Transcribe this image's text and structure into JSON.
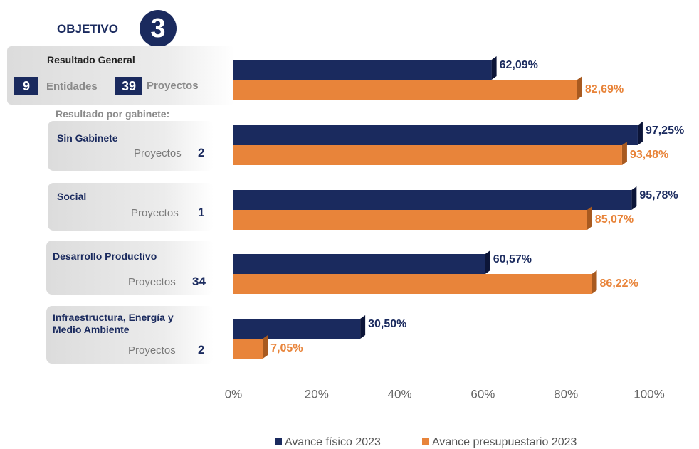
{
  "header": {
    "objective_label": "OBJETIVO",
    "objective_number": "3"
  },
  "summary": {
    "entities": 9,
    "entities_label": "Entidades",
    "projects": 39,
    "projects_label": "Proyectos"
  },
  "subheading": "Resultado por gabinete:",
  "gabinete_projects": {
    "label": "Proyectos",
    "counts": [
      2,
      1,
      34,
      2
    ]
  },
  "chart_data": {
    "type": "barh",
    "categories": [
      "Resultado General",
      "Sin Gabinete",
      "Social",
      "Desarrollo Productivo",
      "Infraestructura, Energía y Medio Ambiente"
    ],
    "series": [
      {
        "name": "Avance físico 2023",
        "color": "#1a2a5e",
        "values": [
          62.09,
          97.25,
          95.78,
          60.57,
          30.5
        ],
        "value_labels": [
          "62,09%",
          "97,25%",
          "95,78%",
          "60,57%",
          "30,50%"
        ]
      },
      {
        "name": "Avance presupuestario 2023",
        "color": "#e8843a",
        "values": [
          82.69,
          93.48,
          85.07,
          86.22,
          7.05
        ],
        "value_labels": [
          "82,69%",
          "93,48%",
          "85,07%",
          "86,22%",
          "7,05%"
        ]
      }
    ],
    "xlim": [
      0,
      100
    ],
    "xticks": [
      {
        "value": 0,
        "label": "0%"
      },
      {
        "value": 20,
        "label": "20%"
      },
      {
        "value": 40,
        "label": "40%"
      },
      {
        "value": 60,
        "label": "60%"
      },
      {
        "value": 80,
        "label": "80%"
      },
      {
        "value": 100,
        "label": "100%"
      }
    ],
    "legend": "bottom"
  }
}
